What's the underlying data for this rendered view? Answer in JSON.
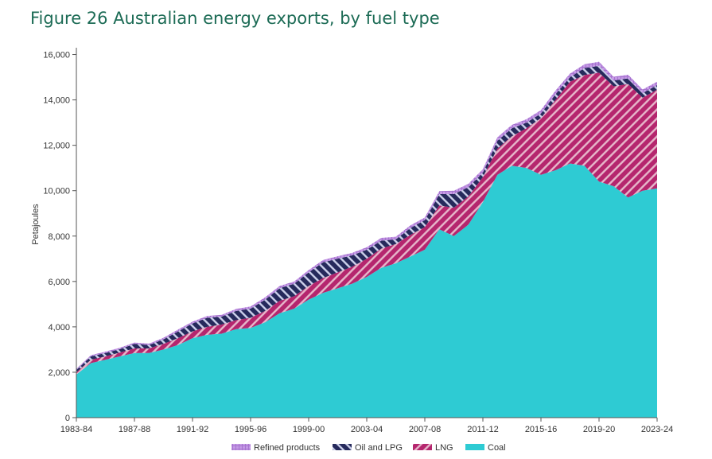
{
  "title": "Figure 26 Australian energy exports, by fuel type",
  "chart_data": {
    "type": "area",
    "stacked": true,
    "title": "Figure 26 Australian energy exports, by fuel type",
    "xlabel": "",
    "ylabel": "Petajoules",
    "ylim": [
      0,
      17000
    ],
    "yticks": [
      0,
      2000,
      4000,
      6000,
      8000,
      10000,
      12000,
      14000,
      16000
    ],
    "ytick_labels": [
      "0",
      "2,000",
      "4,000",
      "6,000",
      "8,000",
      "10,000",
      "12,000",
      "14,000",
      "16,000"
    ],
    "xtick_labels": [
      "1983-84",
      "1987-88",
      "1991-92",
      "1995-96",
      "1999-00",
      "2003-04",
      "2007-08",
      "2011-12",
      "2015-16",
      "2019-20",
      "2023-24"
    ],
    "xtick_indices": [
      0,
      4,
      8,
      12,
      16,
      20,
      24,
      28,
      32,
      36,
      40
    ],
    "legend_position": "bottom",
    "categories": [
      "1983-84",
      "1984-85",
      "1985-86",
      "1986-87",
      "1987-88",
      "1988-89",
      "1989-90",
      "1990-91",
      "1991-92",
      "1992-93",
      "1993-94",
      "1994-95",
      "1995-96",
      "1996-97",
      "1997-98",
      "1998-99",
      "1999-00",
      "2000-01",
      "2001-02",
      "2002-03",
      "2003-04",
      "2004-05",
      "2005-06",
      "2006-07",
      "2007-08",
      "2008-09",
      "2009-10",
      "2010-11",
      "2011-12",
      "2012-13",
      "2013-14",
      "2014-15",
      "2015-16",
      "2016-17",
      "2017-18",
      "2018-19",
      "2019-20",
      "2020-21",
      "2021-22",
      "2022-23",
      "2023-24"
    ],
    "series": [
      {
        "name": "Coal",
        "color": "#2ecbd3",
        "pattern": "solid",
        "values": [
          1900,
          2400,
          2550,
          2700,
          2850,
          2850,
          3000,
          3200,
          3500,
          3650,
          3700,
          3900,
          3950,
          4200,
          4600,
          4800,
          5200,
          5500,
          5700,
          5900,
          6200,
          6600,
          6800,
          7100,
          7400,
          8300,
          8000,
          8500,
          9500,
          10700,
          11100,
          11000,
          10700,
          10900,
          11200,
          11100,
          10400,
          10200,
          9700,
          10000,
          10100
        ]
      },
      {
        "name": "LNG",
        "color": "#b5266e",
        "pattern": "hatch",
        "values": [
          100,
          150,
          150,
          170,
          200,
          200,
          250,
          300,
          300,
          350,
          400,
          400,
          450,
          500,
          550,
          550,
          600,
          650,
          700,
          750,
          800,
          850,
          850,
          950,
          1000,
          1050,
          1250,
          1250,
          1100,
          1150,
          1300,
          1750,
          2500,
          3100,
          3600,
          4000,
          4800,
          4400,
          5000,
          4100,
          4350
        ]
      },
      {
        "name": "Oil and LPG",
        "color": "#262a5c",
        "pattern": "hatch",
        "values": [
          100,
          150,
          150,
          150,
          200,
          150,
          200,
          300,
          350,
          400,
          350,
          400,
          400,
          500,
          550,
          550,
          600,
          700,
          600,
          500,
          400,
          350,
          200,
          300,
          300,
          500,
          600,
          400,
          200,
          350,
          350,
          250,
          200,
          250,
          200,
          300,
          300,
          250,
          250,
          200,
          200
        ]
      },
      {
        "name": "Refined products",
        "color": "#c59ae6",
        "pattern": "grid",
        "values": [
          50,
          50,
          60,
          60,
          60,
          60,
          70,
          80,
          80,
          80,
          80,
          90,
          100,
          100,
          100,
          100,
          100,
          100,
          110,
          110,
          110,
          120,
          120,
          120,
          120,
          130,
          150,
          150,
          150,
          150,
          150,
          150,
          150,
          160,
          160,
          170,
          180,
          170,
          160,
          160,
          150
        ]
      }
    ]
  }
}
